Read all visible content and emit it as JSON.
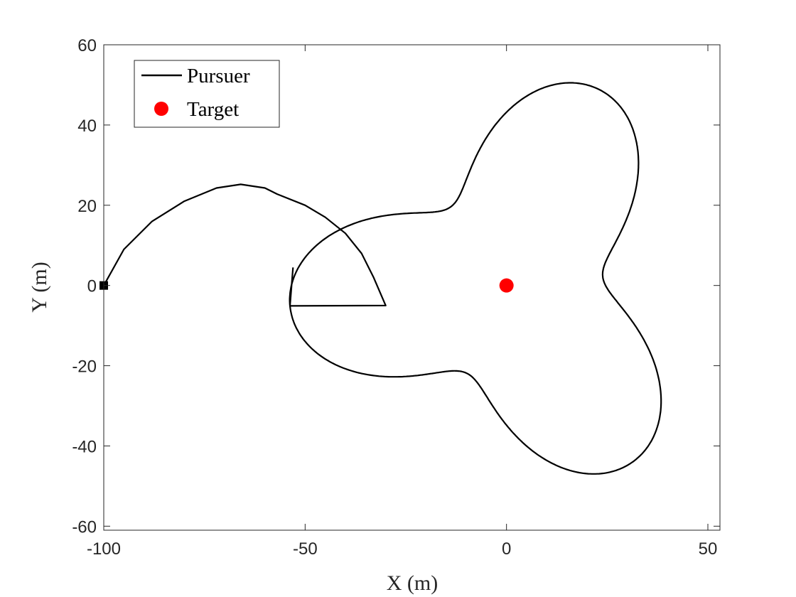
{
  "chart_data": {
    "type": "line",
    "xlabel": "X (m)",
    "ylabel": "Y (m)",
    "xlim": [
      -100,
      53
    ],
    "ylim": [
      -61,
      60
    ],
    "xticks": [
      -100,
      -50,
      0,
      50
    ],
    "yticks": [
      60,
      40,
      20,
      0,
      -20,
      -40,
      -60
    ],
    "grid": false,
    "legend_position": "top-left",
    "series": [
      {
        "name": "Pursuer",
        "kind": "line",
        "color": "#000000",
        "start": [
          -100,
          0
        ],
        "approach": [
          [
            -100,
            0
          ],
          [
            -95,
            9
          ],
          [
            -88,
            16
          ],
          [
            -80,
            21
          ],
          [
            -72,
            24.3
          ],
          [
            -66,
            25.2
          ],
          [
            -60,
            24.3
          ],
          [
            -57,
            22.8
          ],
          [
            -50,
            20
          ],
          [
            -45,
            17
          ],
          [
            -40,
            13
          ],
          [
            -36,
            8
          ],
          [
            -33,
            2
          ],
          [
            -30,
            -5
          ]
        ],
        "orbit_center": [
          0,
          0
        ],
        "orbit_radius_mean": 39,
        "orbit_radius_amplitude": 15,
        "orbit_lobes": 9,
        "orbit_turns": 3,
        "end": [
          -53,
          4.5
        ]
      },
      {
        "name": "Target",
        "kind": "marker",
        "color": "#ff0000",
        "points": [
          [
            0,
            0
          ]
        ]
      }
    ]
  }
}
